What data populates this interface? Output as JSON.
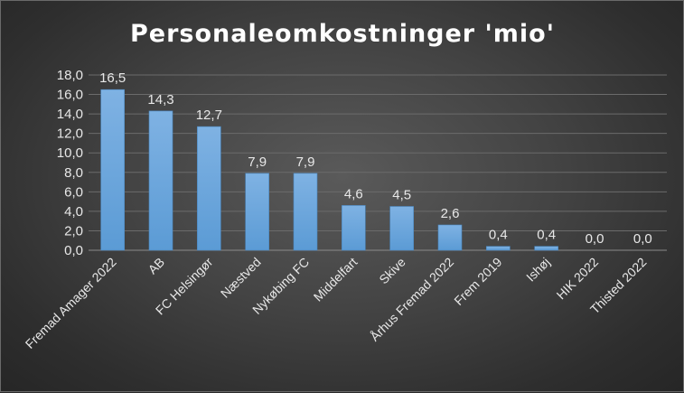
{
  "chart_data": {
    "type": "bar",
    "title": "Personaleomkostninger 'mio'",
    "xlabel": "",
    "ylabel": "",
    "categories": [
      "Fremad Amager 2022",
      "AB",
      "FC Helsingør",
      "Næstved",
      "Nykøbing FC",
      "Middelfart",
      "Skive",
      "Århus Fremad 2022",
      "Frem 2019",
      "Ishøj",
      "HIK 2022",
      "Thisted 2022"
    ],
    "values": [
      16.5,
      14.3,
      12.7,
      7.9,
      7.9,
      4.6,
      4.5,
      2.6,
      0.4,
      0.4,
      0.0,
      0.0
    ],
    "data_labels": [
      "16,5",
      "14,3",
      "12,7",
      "7,9",
      "7,9",
      "4,6",
      "4,5",
      "2,6",
      "0,4",
      "0,4",
      "0,0",
      "0,0"
    ],
    "ylim": [
      0,
      18
    ],
    "yticks": [
      0,
      2,
      4,
      6,
      8,
      10,
      12,
      14,
      16,
      18
    ],
    "ytick_labels": [
      "0,0",
      "2,0",
      "4,0",
      "6,0",
      "8,0",
      "10,0",
      "12,0",
      "14,0",
      "16,0",
      "18,0"
    ],
    "grid": true,
    "legend": "none",
    "bar_color": "#5b9bd5",
    "bar_color_light": "#7fb2e3",
    "background": "#3a3a3a"
  }
}
